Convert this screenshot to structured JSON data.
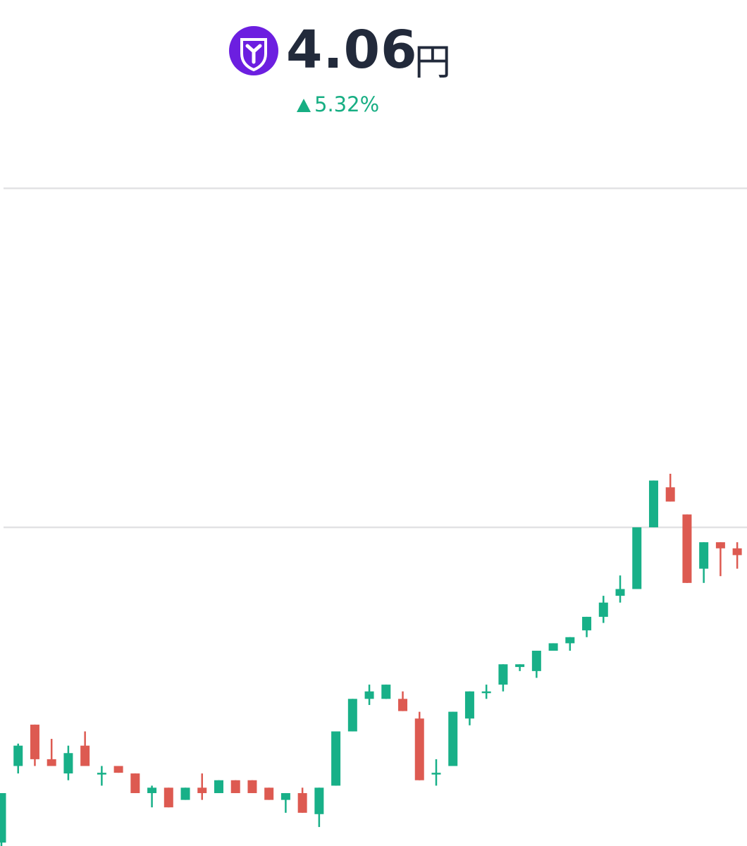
{
  "header": {
    "price": "4.06",
    "unit": "円",
    "change": "5.32%"
  },
  "chart_data": {
    "type": "candlestick",
    "up_color": "#18b088",
    "down_color": "#dd5a51",
    "ylim": [
      3.63,
      4.65
    ],
    "yticks": [
      4.1,
      4.6
    ],
    "grid": true,
    "open": [
      3.635,
      3.748,
      3.809,
      3.758,
      3.737,
      3.778,
      3.736,
      3.748,
      3.737,
      3.708,
      3.716,
      3.698,
      3.716,
      3.708,
      3.727,
      3.727,
      3.716,
      3.698,
      3.708,
      3.677,
      3.719,
      3.799,
      3.847,
      3.847,
      3.847,
      3.818,
      3.736,
      3.748,
      3.818,
      3.856,
      3.868,
      3.894,
      3.888,
      3.918,
      3.929,
      3.948,
      3.968,
      3.999,
      4.009,
      4.1,
      4.159,
      4.119,
      4.039,
      4.078,
      4.069
    ],
    "high": [
      3.708,
      3.781,
      3.809,
      3.788,
      3.778,
      3.799,
      3.748,
      3.748,
      3.737,
      3.719,
      3.716,
      3.716,
      3.737,
      3.727,
      3.727,
      3.727,
      3.716,
      3.708,
      3.716,
      3.716,
      3.799,
      3.847,
      3.868,
      3.868,
      3.858,
      3.828,
      3.758,
      3.828,
      3.858,
      3.868,
      3.898,
      3.898,
      3.918,
      3.929,
      3.938,
      3.968,
      3.999,
      4.029,
      4.1,
      4.169,
      4.179,
      4.119,
      4.078,
      4.078,
      4.078
    ],
    "low": [
      3.63,
      3.737,
      3.748,
      3.748,
      3.727,
      3.748,
      3.719,
      3.738,
      3.708,
      3.687,
      3.687,
      3.698,
      3.698,
      3.708,
      3.708,
      3.708,
      3.698,
      3.679,
      3.679,
      3.658,
      3.719,
      3.799,
      3.838,
      3.847,
      3.829,
      3.727,
      3.719,
      3.748,
      3.808,
      3.847,
      3.858,
      3.888,
      3.878,
      3.918,
      3.918,
      3.938,
      3.959,
      3.989,
      4.009,
      4.1,
      4.138,
      4.018,
      4.018,
      4.028,
      4.039
    ],
    "close": [
      3.708,
      3.778,
      3.758,
      3.748,
      3.767,
      3.748,
      3.738,
      3.738,
      3.708,
      3.716,
      3.687,
      3.716,
      3.708,
      3.727,
      3.708,
      3.708,
      3.698,
      3.708,
      3.679,
      3.716,
      3.799,
      3.847,
      3.858,
      3.868,
      3.829,
      3.727,
      3.738,
      3.828,
      3.858,
      3.858,
      3.898,
      3.898,
      3.918,
      3.929,
      3.938,
      3.968,
      3.989,
      4.009,
      4.1,
      4.169,
      4.138,
      4.018,
      4.078,
      4.069,
      4.059
    ]
  }
}
